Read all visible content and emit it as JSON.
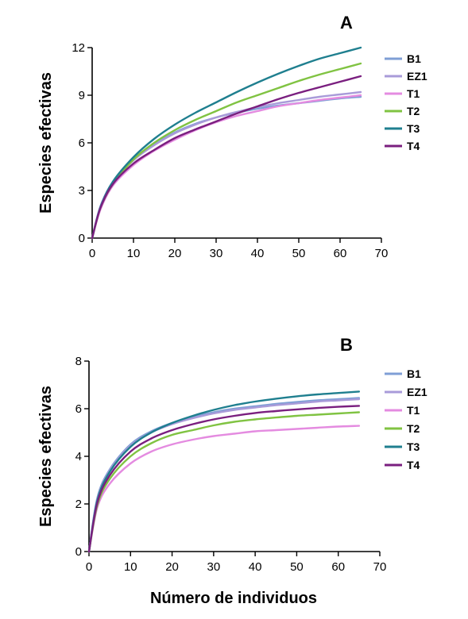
{
  "chart_data": [
    {
      "panel": "A",
      "type": "line",
      "ylabel": "Especies efectivas",
      "xlabel": "",
      "xlim": [
        0,
        70
      ],
      "ylim": [
        0,
        12
      ],
      "xticks": [
        0,
        10,
        20,
        30,
        40,
        50,
        60,
        70
      ],
      "yticks": [
        0,
        3,
        6,
        9,
        12
      ],
      "legend_position": "right",
      "x": [
        0,
        2,
        5,
        10,
        15,
        20,
        25,
        30,
        35,
        40,
        45,
        50,
        55,
        60,
        65
      ],
      "series": [
        {
          "name": "B1",
          "color": "#7f9fd6",
          "values": [
            0,
            2.0,
            3.55,
            5.0,
            5.9,
            6.65,
            7.2,
            7.6,
            7.9,
            8.15,
            8.35,
            8.5,
            8.65,
            8.8,
            8.9
          ]
        },
        {
          "name": "EZ1",
          "color": "#a99bd9",
          "values": [
            0,
            2.0,
            3.5,
            4.9,
            5.85,
            6.6,
            7.15,
            7.6,
            7.95,
            8.25,
            8.5,
            8.7,
            8.9,
            9.05,
            9.2
          ]
        },
        {
          "name": "T1",
          "color": "#e48be0",
          "values": [
            0,
            1.8,
            3.3,
            4.6,
            5.5,
            6.2,
            6.8,
            7.3,
            7.7,
            8.0,
            8.3,
            8.5,
            8.7,
            8.85,
            9.0
          ]
        },
        {
          "name": "T2",
          "color": "#80c342",
          "values": [
            0,
            1.9,
            3.4,
            4.95,
            6.0,
            6.8,
            7.45,
            8.0,
            8.55,
            9.0,
            9.45,
            9.9,
            10.3,
            10.65,
            11.0
          ]
        },
        {
          "name": "T3",
          "color": "#1f7f8f",
          "values": [
            0,
            1.95,
            3.55,
            5.1,
            6.25,
            7.15,
            7.9,
            8.55,
            9.2,
            9.8,
            10.35,
            10.85,
            11.3,
            11.65,
            12.0
          ]
        },
        {
          "name": "T4",
          "color": "#7a1f7f",
          "values": [
            0,
            1.9,
            3.4,
            4.7,
            5.55,
            6.3,
            6.85,
            7.35,
            7.85,
            8.3,
            8.75,
            9.15,
            9.5,
            9.85,
            10.2
          ]
        }
      ]
    },
    {
      "panel": "B",
      "type": "line",
      "ylabel": "Especies efectivas",
      "xlabel": "Número de individuos",
      "xlim": [
        0,
        70
      ],
      "ylim": [
        0,
        8
      ],
      "xticks": [
        0,
        10,
        20,
        30,
        40,
        50,
        60,
        70
      ],
      "yticks": [
        0,
        2,
        4,
        6,
        8
      ],
      "legend_position": "right",
      "x": [
        0,
        2,
        5,
        10,
        15,
        20,
        25,
        30,
        35,
        40,
        45,
        50,
        55,
        60,
        65
      ],
      "series": [
        {
          "name": "B1",
          "color": "#7f9fd6",
          "values": [
            0,
            2.25,
            3.45,
            4.5,
            5.05,
            5.4,
            5.65,
            5.85,
            6.0,
            6.1,
            6.2,
            6.28,
            6.35,
            6.4,
            6.45
          ]
        },
        {
          "name": "EZ1",
          "color": "#a99bd9",
          "values": [
            0,
            2.2,
            3.4,
            4.45,
            5.0,
            5.35,
            5.6,
            5.8,
            5.95,
            6.05,
            6.15,
            6.22,
            6.3,
            6.35,
            6.4
          ]
        },
        {
          "name": "T1",
          "color": "#e48be0",
          "values": [
            0,
            1.85,
            2.85,
            3.7,
            4.2,
            4.5,
            4.7,
            4.85,
            4.95,
            5.05,
            5.1,
            5.15,
            5.2,
            5.25,
            5.28
          ]
        },
        {
          "name": "T2",
          "color": "#80c342",
          "values": [
            0,
            1.95,
            3.05,
            4.0,
            4.55,
            4.9,
            5.1,
            5.3,
            5.45,
            5.55,
            5.63,
            5.7,
            5.75,
            5.8,
            5.85
          ]
        },
        {
          "name": "T3",
          "color": "#1f7f8f",
          "values": [
            0,
            2.15,
            3.35,
            4.4,
            5.0,
            5.4,
            5.7,
            5.95,
            6.15,
            6.3,
            6.42,
            6.52,
            6.6,
            6.66,
            6.72
          ]
        },
        {
          "name": "T4",
          "color": "#7a1f7f",
          "values": [
            0,
            2.05,
            3.2,
            4.2,
            4.75,
            5.1,
            5.35,
            5.55,
            5.7,
            5.82,
            5.9,
            5.97,
            6.03,
            6.08,
            6.12
          ]
        }
      ]
    }
  ]
}
